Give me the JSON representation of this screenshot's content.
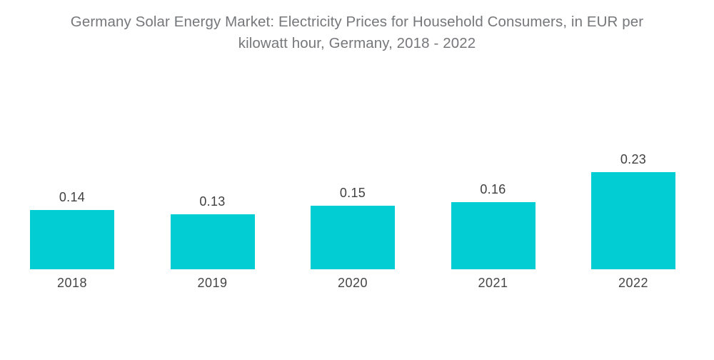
{
  "title": {
    "line1": "Germany Solar Energy Market: Electricity Prices for Household Consumers, in EUR per",
    "line2": "kilowatt hour, Germany, 2018 - 2022"
  },
  "chart_data": {
    "type": "bar",
    "title": "Germany Solar Energy Market: Electricity Prices for Household Consumers, in EUR per kilowatt hour, Germany, 2018 - 2022",
    "categories": [
      "2018",
      "2019",
      "2020",
      "2021",
      "2022"
    ],
    "values": [
      0.14,
      0.13,
      0.15,
      0.16,
      0.23
    ],
    "value_labels": [
      "0.14",
      "0.13",
      "0.15",
      "0.16",
      "0.23"
    ],
    "xlabel": "",
    "ylabel": "",
    "ylim": [
      0,
      0.25
    ],
    "grid": false,
    "legend": false,
    "axes_visible": false,
    "colors": {
      "bar": "#02CDD3",
      "title_text": "#76777A",
      "value_text": "#404041",
      "year_text": "#454546",
      "background": "#FFFFFF"
    }
  }
}
